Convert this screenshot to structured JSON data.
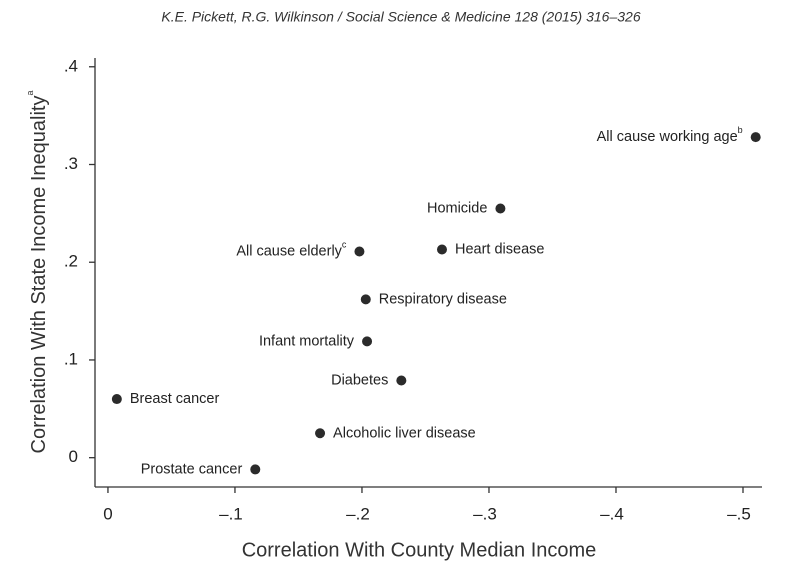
{
  "header": "K.E. Pickett, R.G. Wilkinson / Social Science & Medicine 128 (2015) 316–326",
  "chart_data": {
    "type": "scatter",
    "xlabel": "Correlation With County Median Income",
    "ylabel": "Correlation With State Income Inequality",
    "ylabel_superscript": "a",
    "x": [
      -0.51,
      -0.309,
      -0.198,
      -0.263,
      -0.203,
      -0.204,
      -0.231,
      -0.007,
      -0.167,
      -0.116
    ],
    "values": [
      0.328,
      0.255,
      0.211,
      0.213,
      0.162,
      0.119,
      0.079,
      0.06,
      0.025,
      -0.012
    ],
    "labels": [
      "All cause working age",
      "Homicide",
      "All cause elderly",
      "Heart disease",
      "Respiratory disease",
      "Infant mortality",
      "Diabetes",
      "Breast cancer",
      "Alcoholic liver disease",
      "Prostate cancer"
    ],
    "label_superscripts": {
      "0": "b",
      "2": "c"
    },
    "color": "#2b2b2b",
    "xlim": [
      0.005,
      -0.52
    ],
    "ylim": [
      -0.03,
      0.41
    ],
    "xticks": [
      0,
      {
        "value": -0.1,
        "label": "–.1"
      },
      {
        "value": -0.2,
        "label": "–.2"
      },
      {
        "value": -0.3,
        "label": "–.3"
      },
      {
        "value": -0.4,
        "label": "–.4"
      },
      {
        "value": -0.5,
        "label": "–.5"
      }
    ],
    "yticks": [
      0,
      {
        "value": 0.1,
        "label": ".1"
      },
      {
        "value": 0.2,
        "label": ".2"
      },
      {
        "value": 0.3,
        "label": ".3"
      },
      {
        "value": 0.4,
        "label": ".4"
      }
    ]
  }
}
